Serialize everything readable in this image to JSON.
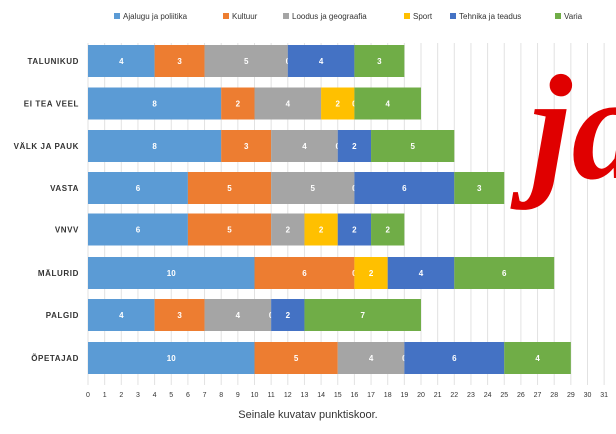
{
  "chart_data": {
    "type": "bar",
    "orientation": "horizontal",
    "stacked": true,
    "categories": [
      "TALUNIKUD",
      "EI TEA VEEL",
      "VÄLK JA PAUK",
      "VASTA",
      "VNVV",
      "MÄLURID",
      "PALGID",
      "ÕPETAJAD"
    ],
    "series": [
      {
        "name": "Ajalugu ja poliitika",
        "color": "#5b9bd5",
        "values": [
          4,
          8,
          8,
          6,
          6,
          10,
          4,
          10
        ]
      },
      {
        "name": "Kultuur",
        "color": "#ed7d31",
        "values": [
          3,
          2,
          3,
          5,
          5,
          6,
          3,
          5
        ]
      },
      {
        "name": "Loodus ja geograafia",
        "color": "#a5a5a5",
        "values": [
          5,
          4,
          4,
          5,
          2,
          0,
          4,
          4
        ]
      },
      {
        "name": "Sport",
        "color": "#ffc000",
        "values": [
          0,
          2,
          0,
          0,
          2,
          2,
          0,
          0
        ]
      },
      {
        "name": "Tehnika ja teadus",
        "color": "#4472c4",
        "values": [
          4,
          0,
          2,
          6,
          2,
          4,
          2,
          6
        ]
      },
      {
        "name": "Varia",
        "color": "#70ad47",
        "values": [
          3,
          4,
          5,
          3,
          2,
          6,
          7,
          4
        ]
      }
    ],
    "x_ticks": [
      "0",
      "1",
      "2",
      "3",
      "4",
      "5",
      "6",
      "7",
      "8",
      "9",
      "10",
      "11",
      "12",
      "13",
      "14",
      "15",
      "16",
      "17",
      "18",
      "19",
      "20",
      "21",
      "22",
      "23",
      "24",
      "25",
      "26",
      "27",
      "28",
      "29",
      "30",
      "31"
    ],
    "xlim": [
      0,
      31
    ],
    "xlabel": "Seinale kuvatav punktiskoor.",
    "legend_position": "top",
    "grid": true
  },
  "overlay": {
    "text": "ja",
    "color": "#e00000"
  }
}
